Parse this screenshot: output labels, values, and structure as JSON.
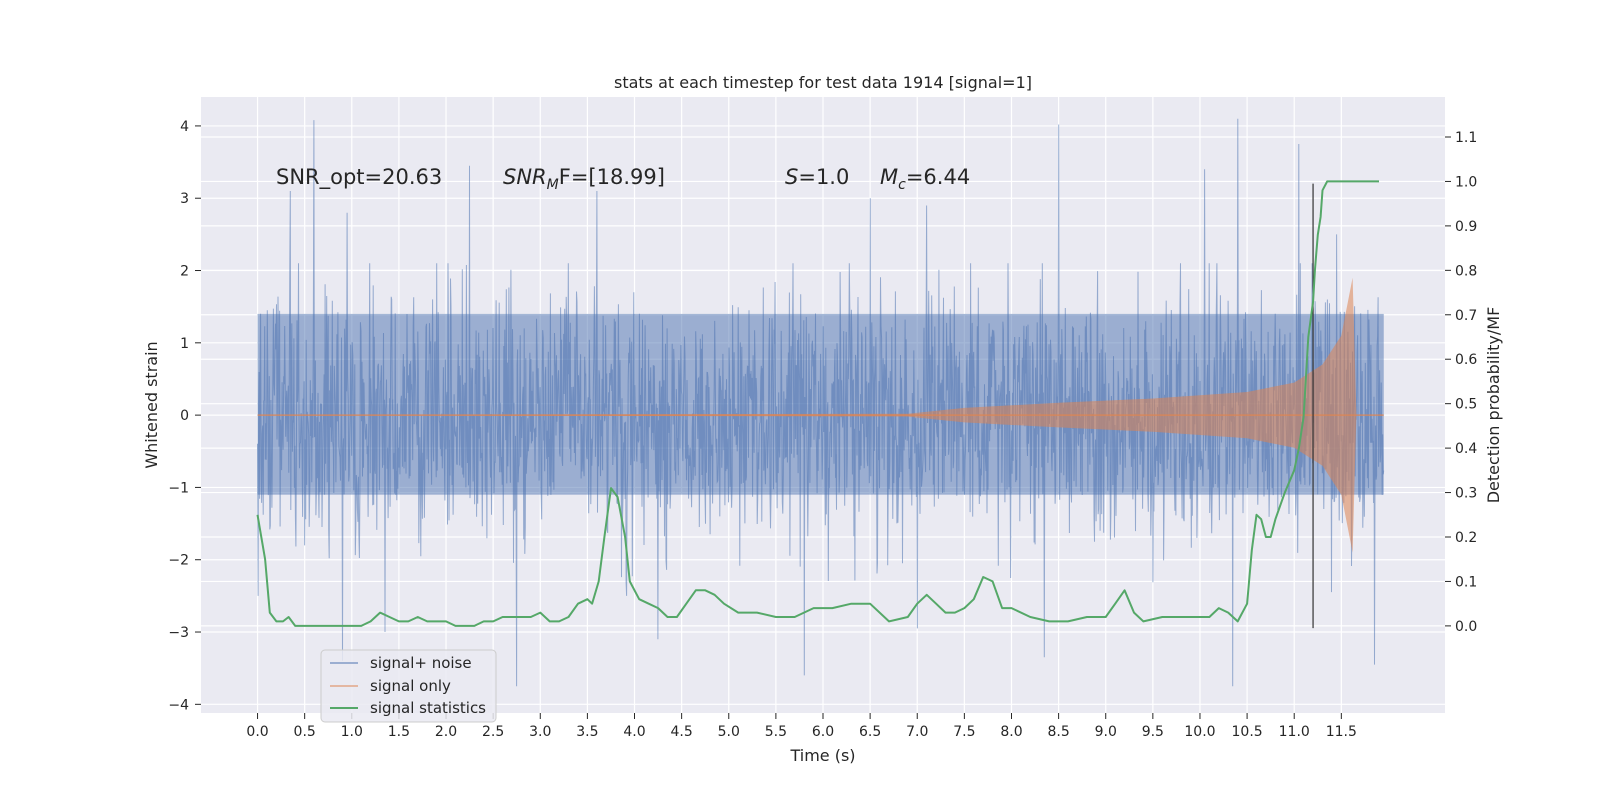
{
  "chart_data": {
    "type": "line",
    "title": "stats at each timestep for test data 1914 [signal=1]",
    "xlabel": "Time (s)",
    "ylabel_left": "Whitened strain",
    "ylabel_right": "Detection probability/MF",
    "xlim": [
      -0.6,
      12.6
    ],
    "ylim_left": [
      -4.12,
      4.4
    ],
    "ylim_right": [
      -0.196,
      1.19
    ],
    "xticks": [
      "0.0",
      "0.5",
      "1.0",
      "1.5",
      "2.0",
      "2.5",
      "3.0",
      "3.5",
      "4.0",
      "4.5",
      "5.0",
      "5.5",
      "6.0",
      "6.5",
      "7.0",
      "7.5",
      "8.0",
      "8.5",
      "9.0",
      "9.5",
      "10.0",
      "10.5",
      "11.0",
      "11.5"
    ],
    "yticks_left": [
      "−4",
      "−3",
      "−2",
      "−1",
      "0",
      "1",
      "2",
      "3",
      "4"
    ],
    "yticks_right": [
      "0.0",
      "0.1",
      "0.2",
      "0.3",
      "0.4",
      "0.5",
      "0.6",
      "0.7",
      "0.8",
      "0.9",
      "1.0",
      "1.1"
    ],
    "grid": true,
    "legend_position": "lower-left",
    "annotations": {
      "snr_opt": "SNR_opt=20.63",
      "snr_mf_label": "SNR",
      "snr_mf_sub": "M",
      "snr_mf_rest": "F=[18.99]",
      "s_label": "S",
      "s_value": "=1.0",
      "mc_label": "M",
      "mc_sub": "c",
      "mc_value": "=6.44"
    },
    "series": [
      {
        "name": "signal+ noise",
        "color": "#4c72b0",
        "axis": "left",
        "envelope": {
          "x": [
            0.0,
            11.95
          ],
          "core_band": [
            -1.1,
            1.4
          ],
          "peak_spikes": [
            {
              "x": 0.6,
              "y": 4.08
            },
            {
              "x": 0.35,
              "y": 3.1
            },
            {
              "x": 0.95,
              "y": 2.8
            },
            {
              "x": 2.25,
              "y": 3.45
            },
            {
              "x": 3.6,
              "y": 3.1
            },
            {
              "x": 6.5,
              "y": 3.0
            },
            {
              "x": 7.1,
              "y": 2.9
            },
            {
              "x": 8.5,
              "y": 4.02
            },
            {
              "x": 10.4,
              "y": 4.1
            },
            {
              "x": 10.05,
              "y": 3.4
            },
            {
              "x": 11.05,
              "y": 3.75
            },
            {
              "x": 11.45,
              "y": 2.5
            }
          ],
          "trough_spikes": [
            {
              "x": 0.9,
              "y": -3.4
            },
            {
              "x": 2.75,
              "y": -3.75
            },
            {
              "x": 5.8,
              "y": -3.6
            },
            {
              "x": 8.35,
              "y": -3.35
            },
            {
              "x": 10.35,
              "y": -3.75
            },
            {
              "x": 11.85,
              "y": -3.45
            },
            {
              "x": 1.35,
              "y": -3.0
            },
            {
              "x": 4.25,
              "y": -3.1
            },
            {
              "x": 7.0,
              "y": -2.95
            }
          ]
        }
      },
      {
        "name": "signal only",
        "color": "#dd8452",
        "axis": "left",
        "envelope_points": [
          {
            "x": 0.0,
            "a": 0.0
          },
          {
            "x": 6.9,
            "a": 0.02
          },
          {
            "x": 7.5,
            "a": 0.1
          },
          {
            "x": 8.5,
            "a": 0.17
          },
          {
            "x": 9.5,
            "a": 0.23
          },
          {
            "x": 10.5,
            "a": 0.32
          },
          {
            "x": 11.0,
            "a": 0.45
          },
          {
            "x": 11.3,
            "a": 0.7
          },
          {
            "x": 11.5,
            "a": 1.1
          },
          {
            "x": 11.62,
            "a": 1.9
          },
          {
            "x": 11.66,
            "a": 0.0
          },
          {
            "x": 11.95,
            "a": 0.0
          }
        ],
        "merger_x": 11.66,
        "merger_amplitude": 1.9
      },
      {
        "name": "signal statistics",
        "color": "#55a868",
        "axis": "right",
        "x": [
          0.0,
          0.08,
          0.13,
          0.2,
          0.27,
          0.33,
          0.4,
          0.5,
          0.6,
          0.7,
          0.8,
          0.9,
          1.0,
          1.1,
          1.2,
          1.3,
          1.4,
          1.5,
          1.6,
          1.7,
          1.8,
          1.9,
          2.0,
          2.1,
          2.2,
          2.3,
          2.4,
          2.5,
          2.6,
          2.7,
          2.8,
          2.9,
          3.0,
          3.1,
          3.2,
          3.3,
          3.4,
          3.5,
          3.55,
          3.62,
          3.68,
          3.75,
          3.82,
          3.9,
          3.95,
          4.05,
          4.15,
          4.25,
          4.35,
          4.45,
          4.55,
          4.65,
          4.75,
          4.85,
          4.95,
          5.1,
          5.3,
          5.5,
          5.7,
          5.9,
          6.1,
          6.3,
          6.5,
          6.7,
          6.9,
          7.0,
          7.1,
          7.2,
          7.3,
          7.4,
          7.5,
          7.6,
          7.7,
          7.8,
          7.9,
          8.0,
          8.2,
          8.4,
          8.6,
          8.8,
          9.0,
          9.1,
          9.2,
          9.3,
          9.4,
          9.6,
          9.8,
          10.0,
          10.1,
          10.2,
          10.3,
          10.4,
          10.5,
          10.55,
          10.6,
          10.65,
          10.7,
          10.75,
          10.8,
          10.9,
          11.0,
          11.05,
          11.1,
          11.15,
          11.2,
          11.22,
          11.25,
          11.28,
          11.3,
          11.35,
          11.4,
          11.5,
          11.6,
          11.7,
          11.8,
          11.9
        ],
        "y": [
          0.25,
          0.15,
          0.03,
          0.01,
          0.01,
          0.02,
          0.0,
          0.0,
          0.0,
          0.0,
          0.0,
          0.0,
          0.0,
          0.0,
          0.01,
          0.03,
          0.02,
          0.01,
          0.01,
          0.02,
          0.01,
          0.01,
          0.01,
          0.0,
          0.0,
          0.0,
          0.01,
          0.01,
          0.02,
          0.02,
          0.02,
          0.02,
          0.03,
          0.01,
          0.01,
          0.02,
          0.05,
          0.06,
          0.05,
          0.1,
          0.2,
          0.31,
          0.29,
          0.2,
          0.1,
          0.06,
          0.05,
          0.04,
          0.02,
          0.02,
          0.05,
          0.08,
          0.08,
          0.07,
          0.05,
          0.03,
          0.03,
          0.02,
          0.02,
          0.04,
          0.04,
          0.05,
          0.05,
          0.01,
          0.02,
          0.05,
          0.07,
          0.05,
          0.03,
          0.03,
          0.04,
          0.06,
          0.11,
          0.1,
          0.04,
          0.04,
          0.02,
          0.01,
          0.01,
          0.02,
          0.02,
          0.05,
          0.08,
          0.03,
          0.01,
          0.02,
          0.02,
          0.02,
          0.02,
          0.04,
          0.03,
          0.01,
          0.05,
          0.17,
          0.25,
          0.24,
          0.2,
          0.2,
          0.24,
          0.3,
          0.35,
          0.4,
          0.47,
          0.65,
          0.73,
          0.8,
          0.88,
          0.92,
          0.98,
          1.0,
          1.0,
          1.0,
          1.0,
          1.0,
          1.0,
          1.0
        ]
      }
    ],
    "vertical_marker": {
      "x": 11.2,
      "y_range_right": [
        -0.005,
        0.995
      ],
      "color": "#333333"
    }
  }
}
